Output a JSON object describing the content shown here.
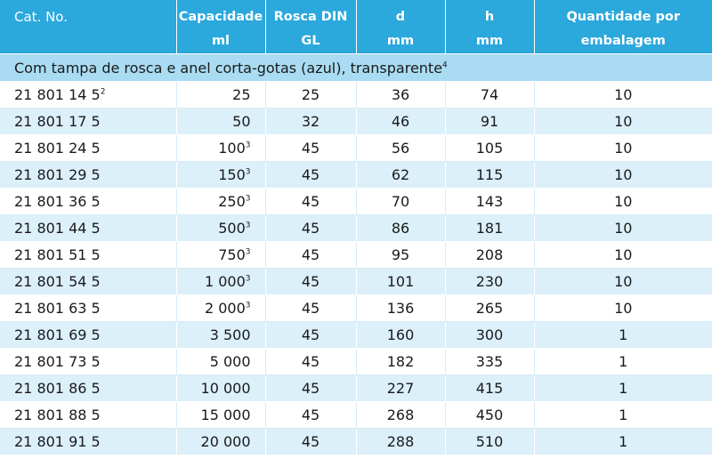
{
  "headers": {
    "cat": "Cat. No.",
    "capacidade": [
      "Capacidade",
      "ml"
    ],
    "rosca": [
      "Rosca DIN",
      "GL"
    ],
    "d": [
      "d",
      "mm"
    ],
    "h": [
      "h",
      "mm"
    ],
    "quantidade": [
      "Quantidade por",
      "embalagem"
    ]
  },
  "section": {
    "label": "Com tampa de rosca e anel corta-gotas (azul), transparente",
    "note": "4"
  },
  "rows": [
    {
      "cat": "21 801 14 5",
      "cat_note": "2",
      "cap": "25",
      "cap_note": "",
      "rosca": "25",
      "d": "36",
      "h": "74",
      "qty": "10"
    },
    {
      "cat": "21 801 17 5",
      "cat_note": "",
      "cap": "50",
      "cap_note": "",
      "rosca": "32",
      "d": "46",
      "h": "91",
      "qty": "10"
    },
    {
      "cat": "21 801 24 5",
      "cat_note": "",
      "cap": "100",
      "cap_note": "3",
      "rosca": "45",
      "d": "56",
      "h": "105",
      "qty": "10"
    },
    {
      "cat": "21 801 29 5",
      "cat_note": "",
      "cap": "150",
      "cap_note": "3",
      "rosca": "45",
      "d": "62",
      "h": "115",
      "qty": "10"
    },
    {
      "cat": "21 801 36 5",
      "cat_note": "",
      "cap": "250",
      "cap_note": "3",
      "rosca": "45",
      "d": "70",
      "h": "143",
      "qty": "10"
    },
    {
      "cat": "21 801 44 5",
      "cat_note": "",
      "cap": "500",
      "cap_note": "3",
      "rosca": "45",
      "d": "86",
      "h": "181",
      "qty": "10"
    },
    {
      "cat": "21 801 51 5",
      "cat_note": "",
      "cap": "750",
      "cap_note": "3",
      "rosca": "45",
      "d": "95",
      "h": "208",
      "qty": "10"
    },
    {
      "cat": "21 801 54 5",
      "cat_note": "",
      "cap": "1 000",
      "cap_note": "3",
      "rosca": "45",
      "d": "101",
      "h": "230",
      "qty": "10"
    },
    {
      "cat": "21 801 63 5",
      "cat_note": "",
      "cap": "2 000",
      "cap_note": "3",
      "rosca": "45",
      "d": "136",
      "h": "265",
      "qty": "10"
    },
    {
      "cat": "21 801 69 5",
      "cat_note": "",
      "cap": "3 500",
      "cap_note": "",
      "rosca": "45",
      "d": "160",
      "h": "300",
      "qty": "1"
    },
    {
      "cat": "21 801 73 5",
      "cat_note": "",
      "cap": "5 000",
      "cap_note": "",
      "rosca": "45",
      "d": "182",
      "h": "335",
      "qty": "1"
    },
    {
      "cat": "21 801 86 5",
      "cat_note": "",
      "cap": "10 000",
      "cap_note": "",
      "rosca": "45",
      "d": "227",
      "h": "415",
      "qty": "1"
    },
    {
      "cat": "21 801 88 5",
      "cat_note": "",
      "cap": "15 000",
      "cap_note": "",
      "rosca": "45",
      "d": "268",
      "h": "450",
      "qty": "1"
    },
    {
      "cat": "21 801 91 5",
      "cat_note": "",
      "cap": "20 000",
      "cap_note": "",
      "rosca": "45",
      "d": "288",
      "h": "510",
      "qty": "1"
    }
  ],
  "colors": {
    "header": "#2ba8dc",
    "section": "#a9dcf2",
    "row_alt": "#dcf0fa"
  }
}
